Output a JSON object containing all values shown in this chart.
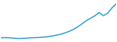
{
  "x": [
    0,
    1,
    2,
    3,
    4,
    5,
    6,
    7,
    8,
    9,
    10,
    11,
    12,
    13,
    14,
    15,
    16,
    17,
    18,
    19,
    20,
    21,
    22,
    23,
    24,
    25,
    26,
    27
  ],
  "y": [
    2.0,
    2.05,
    2.0,
    1.85,
    1.75,
    1.8,
    1.9,
    2.0,
    2.05,
    2.1,
    2.2,
    2.35,
    2.55,
    2.8,
    3.1,
    3.5,
    4.0,
    4.6,
    5.4,
    6.3,
    7.3,
    8.0,
    8.8,
    9.8,
    8.8,
    9.6,
    11.2,
    12.5
  ],
  "line_color": "#4bacd6",
  "line_width": 1.0,
  "background_color": "#ffffff",
  "ylim_min": 1.0,
  "ylim_max": 13.5
}
